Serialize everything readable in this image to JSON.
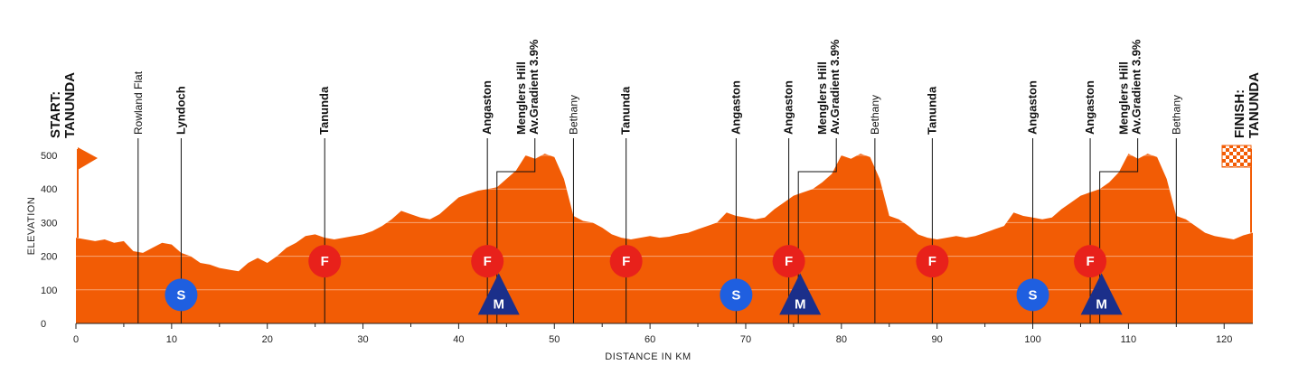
{
  "chart_data": {
    "type": "area",
    "xlabel": "DISTANCE IN KM",
    "ylabel": "ELEVATION",
    "xlim": [
      0,
      123
    ],
    "ylim": [
      0,
      520
    ],
    "x_ticks": [
      0,
      10,
      20,
      30,
      40,
      50,
      60,
      70,
      80,
      90,
      100,
      110,
      120
    ],
    "y_ticks": [
      0,
      100,
      200,
      300,
      400,
      500
    ],
    "grid": "horizontal",
    "fill_color": "#f25c05",
    "profile": {
      "x": [
        0,
        1,
        2,
        3,
        4,
        5,
        6,
        7,
        8,
        9,
        10,
        11,
        12,
        13,
        14,
        15,
        16,
        17,
        18,
        19,
        20,
        21,
        22,
        23,
        24,
        25,
        26,
        27,
        28,
        29,
        30,
        31,
        32,
        33,
        34,
        35,
        36,
        37,
        38,
        39,
        40,
        41,
        42,
        43,
        44,
        45,
        46,
        47,
        48,
        49,
        50,
        51,
        52,
        53,
        54,
        55,
        56,
        57,
        58,
        59,
        60,
        61,
        62,
        63,
        64,
        65,
        66,
        67,
        68,
        69,
        70,
        71,
        72,
        73,
        74,
        75,
        76,
        77,
        78,
        79,
        80,
        81,
        82,
        83,
        84,
        85,
        86,
        87,
        88,
        89,
        90,
        91,
        92,
        93,
        94,
        95,
        96,
        97,
        98,
        99,
        100,
        101,
        102,
        103,
        104,
        105,
        106,
        107,
        108,
        109,
        110,
        111,
        112,
        113,
        114,
        115,
        116,
        117,
        118,
        119,
        120,
        121,
        122,
        123
      ],
      "elevation": [
        255,
        250,
        245,
        250,
        240,
        245,
        215,
        210,
        225,
        240,
        235,
        210,
        200,
        180,
        175,
        165,
        160,
        155,
        180,
        195,
        180,
        200,
        225,
        240,
        260,
        265,
        255,
        250,
        255,
        260,
        265,
        275,
        290,
        310,
        335,
        325,
        315,
        310,
        325,
        350,
        375,
        385,
        395,
        400,
        405,
        430,
        455,
        500,
        490,
        505,
        495,
        430,
        320,
        305,
        300,
        285,
        265,
        255,
        250,
        255,
        260,
        255,
        258,
        265,
        270,
        280,
        290,
        300,
        330,
        320,
        315,
        310,
        315,
        340,
        360,
        380,
        390,
        400,
        420,
        445,
        500,
        490,
        505,
        495,
        430,
        320,
        310,
        290,
        265,
        255,
        250,
        255,
        260,
        255,
        260,
        270,
        280,
        290,
        330,
        320,
        315,
        310,
        315,
        340,
        360,
        380,
        390,
        400,
        420,
        450,
        505,
        490,
        505,
        495,
        430,
        320,
        310,
        290,
        270,
        260,
        255,
        250,
        262,
        270
      ]
    },
    "points": [
      {
        "km": 0,
        "name": "START:\nTANUNDA",
        "style": "end"
      },
      {
        "km": 6.5,
        "name": "Rowland Flat",
        "style": "normal"
      },
      {
        "km": 11,
        "name": "Lyndoch",
        "style": "bold",
        "marker": "S"
      },
      {
        "km": 26,
        "name": "Tanunda",
        "style": "bold",
        "marker": "F"
      },
      {
        "km": 43,
        "name": "Angaston",
        "style": "bold",
        "marker": "F"
      },
      {
        "km": 44,
        "name": "Menglers Hill\nAv.Gradient 3.9%",
        "style": "bold",
        "marker": "M"
      },
      {
        "km": 52,
        "name": "Bethany",
        "style": "normal"
      },
      {
        "km": 57.5,
        "name": "Tanunda",
        "style": "bold",
        "marker": "F"
      },
      {
        "km": 69,
        "name": "Angaston",
        "style": "bold",
        "marker": "S"
      },
      {
        "km": 74.5,
        "name": "Angaston",
        "style": "bold",
        "marker": "F"
      },
      {
        "km": 75.5,
        "name": "Menglers Hill\nAv.Gradient 3.9%",
        "style": "bold",
        "marker": "M"
      },
      {
        "km": 83.5,
        "name": "Bethany",
        "style": "normal"
      },
      {
        "km": 89.5,
        "name": "Tanunda",
        "style": "bold",
        "marker": "F"
      },
      {
        "km": 100,
        "name": "Angaston",
        "style": "bold",
        "marker": "S"
      },
      {
        "km": 106,
        "name": "Angaston",
        "style": "bold",
        "marker": "F"
      },
      {
        "km": 107,
        "name": "Menglers Hill\nAv.Gradient 3.9%",
        "style": "bold",
        "marker": "M"
      },
      {
        "km": 115,
        "name": "Bethany",
        "style": "normal"
      },
      {
        "km": 123,
        "name": "FINISH:\nTANUNDA",
        "style": "end"
      }
    ],
    "marker_legend": {
      "S": {
        "label": "S",
        "color": "#1f5fe0"
      },
      "F": {
        "label": "F",
        "color": "#e8211b"
      },
      "M": {
        "label": "M",
        "color": "#1b2f8a"
      }
    },
    "marker_elevations": {
      "S": 85,
      "F": 185,
      "M": 85
    }
  }
}
